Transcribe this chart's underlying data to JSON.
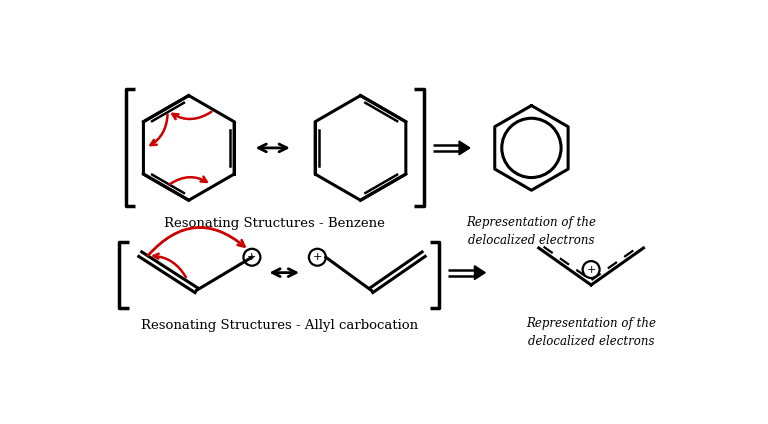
{
  "bg_color": "#ffffff",
  "line_color": "#000000",
  "red_color": "#cc0000",
  "title1": "Resonating Structures - Benzene",
  "title2": "Resonating Structures - Allyl carbocation",
  "repr_text1": "Representation of the\ndelocalized electrons",
  "repr_text2": "Representation of the\ndelocalized electrons",
  "lw_main": 2.2,
  "lw_inner": 1.8,
  "lw_bracket": 2.5
}
